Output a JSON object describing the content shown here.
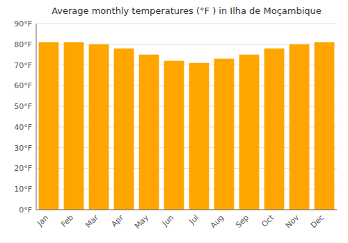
{
  "chart_data": {
    "type": "bar",
    "title": "Average monthly temperatures (°F ) in Ilha de Moçambique",
    "categories": [
      "Jan",
      "Feb",
      "Mar",
      "Apr",
      "May",
      "Jun",
      "Jul",
      "Aug",
      "Sep",
      "Oct",
      "Nov",
      "Dec"
    ],
    "values": [
      81,
      81,
      80,
      78,
      75,
      72,
      71,
      73,
      75,
      78,
      80,
      81
    ],
    "color": "#FFA500",
    "ylim": [
      0,
      90
    ],
    "yticks": [
      {
        "value": 0,
        "label": "0°F"
      },
      {
        "value": 10,
        "label": "10°F"
      },
      {
        "value": 20,
        "label": "20°F"
      },
      {
        "value": 30,
        "label": "30°F"
      },
      {
        "value": 40,
        "label": "40°F"
      },
      {
        "value": 50,
        "label": "50°F"
      },
      {
        "value": 60,
        "label": "60°F"
      },
      {
        "value": 70,
        "label": "70°F"
      },
      {
        "value": 80,
        "label": "80°F"
      },
      {
        "value": 90,
        "label": "90°F"
      }
    ],
    "grid": true
  }
}
